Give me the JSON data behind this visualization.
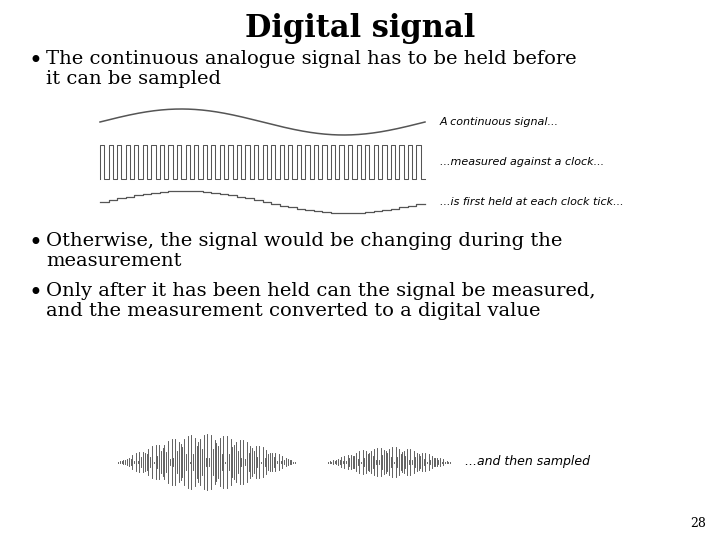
{
  "title": "Digital signal",
  "title_fontsize": 22,
  "title_fontweight": "bold",
  "bullet1_line1": "The continuous analogue signal has to be held before",
  "bullet1_line2": "it can be sampled",
  "bullet2_line1": "Otherwise, the signal would be changing during the",
  "bullet2_line2": "measurement",
  "bullet3_line1": "Only after it has been held can the signal be measured,",
  "bullet3_line2": "and the measurement converted to a digital value",
  "label1": "A continuous signal...",
  "label2": "...measured against a clock...",
  "label3": "...is first held at each clock tick...",
  "label4": "...and then sampled",
  "page_number": "28",
  "background_color": "#ffffff",
  "text_color": "#000000",
  "signal_color": "#555555",
  "bullet_fontsize": 14,
  "label_fontsize": 8
}
